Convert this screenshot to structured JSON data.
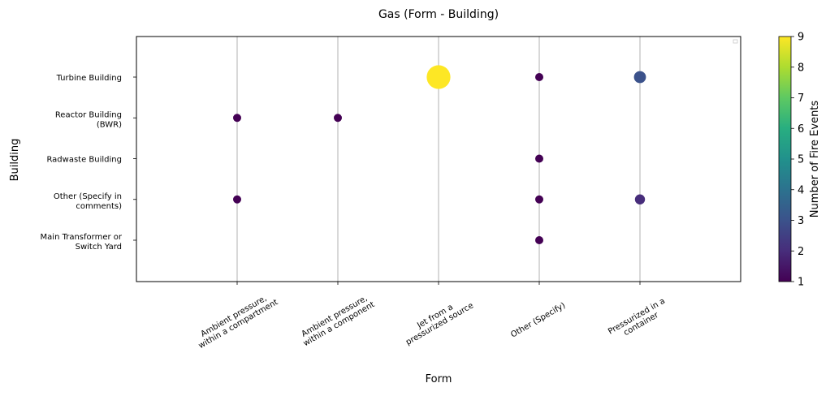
{
  "chart_data": {
    "type": "scatter",
    "title": "Gas (Form - Building)",
    "xlabel": "Form",
    "ylabel": "Building",
    "x_categories": [
      "Ambient pressure,\nwithin a compartment",
      "Ambient pressure,\nwithin a component",
      "Jet from a\npressurized source",
      "Other (Specify)",
      "Pressurized in a\ncontainer"
    ],
    "y_categories": [
      "Main Transformer or\nSwitch Yard",
      "Other (Specify in\ncomments)",
      "Radwaste Building",
      "Reactor Building\n(BWR)",
      "Turbine Building"
    ],
    "points": [
      {
        "x": "Jet from a\npressurized source",
        "y": "Turbine Building",
        "value": 9
      },
      {
        "x": "Other (Specify)",
        "y": "Turbine Building",
        "value": 1
      },
      {
        "x": "Pressurized in a\ncontainer",
        "y": "Turbine Building",
        "value": 3
      },
      {
        "x": "Ambient pressure,\nwithin a compartment",
        "y": "Reactor Building\n(BWR)",
        "value": 1
      },
      {
        "x": "Ambient pressure,\nwithin a component",
        "y": "Reactor Building\n(BWR)",
        "value": 1
      },
      {
        "x": "Other (Specify)",
        "y": "Radwaste Building",
        "value": 1
      },
      {
        "x": "Ambient pressure,\nwithin a compartment",
        "y": "Other (Specify in\ncomments)",
        "value": 1
      },
      {
        "x": "Other (Specify)",
        "y": "Other (Specify in\ncomments)",
        "value": 1
      },
      {
        "x": "Pressurized in a\ncontainer",
        "y": "Other (Specify in\ncomments)",
        "value": 2
      },
      {
        "x": "Other (Specify)",
        "y": "Main Transformer or\nSwitch Yard",
        "value": 1
      }
    ],
    "colorbar": {
      "label": "Number of Fire Events",
      "min": 1,
      "max": 9,
      "ticks": [
        1,
        2,
        3,
        4,
        5,
        6,
        7,
        8,
        9
      ],
      "colormap": "viridis"
    },
    "grid": "vertical",
    "legend": "top-right"
  }
}
